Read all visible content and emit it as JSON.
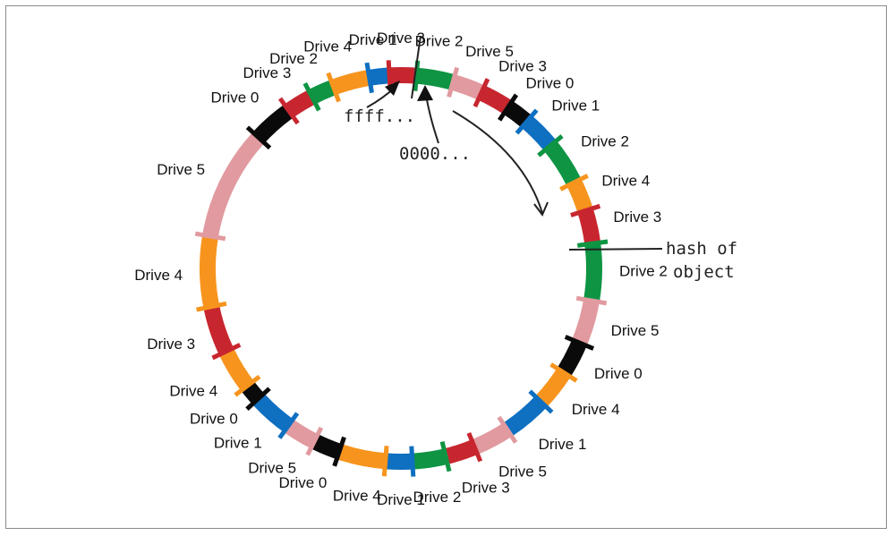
{
  "colors": {
    "Drive 0": "#0a0a0a",
    "Drive 1": "#0f6fc1",
    "Drive 2": "#0e9443",
    "Drive 3": "#c8262f",
    "Drive 4": "#f7941d",
    "Drive 5": "#e19a9f",
    "ink": "#222222"
  },
  "ring": {
    "segments": [
      {
        "drive": "Drive 2",
        "label": "Drive 2"
      },
      {
        "drive": "Drive 5",
        "label": "Drive 5"
      },
      {
        "drive": "Drive 3",
        "label": "Drive 3"
      },
      {
        "drive": "Drive 0",
        "label": "Drive 0"
      },
      {
        "drive": "Drive 1",
        "label": "Drive 1"
      },
      {
        "drive": "Drive 2",
        "label": "Drive 2"
      },
      {
        "drive": "Drive 4",
        "label": "Drive 4"
      },
      {
        "drive": "Drive 3",
        "label": "Drive 3"
      },
      {
        "drive": "Drive 2",
        "label": "Drive 2"
      },
      {
        "drive": "Drive 5",
        "label": "Drive 5"
      },
      {
        "drive": "Drive 0",
        "label": "Drive 0"
      },
      {
        "drive": "Drive 4",
        "label": "Drive 4"
      },
      {
        "drive": "Drive 1",
        "label": "Drive 1"
      },
      {
        "drive": "Drive 5",
        "label": "Drive 5"
      },
      {
        "drive": "Drive 3",
        "label": "Drive 3"
      },
      {
        "drive": "Drive 2",
        "label": "Drive 2"
      },
      {
        "drive": "Drive 1",
        "label": "Drive 1"
      },
      {
        "drive": "Drive 4",
        "label": "Drive 4"
      },
      {
        "drive": "Drive 0",
        "label": "Drive 0"
      },
      {
        "drive": "Drive 5",
        "label": "Drive 5"
      },
      {
        "drive": "Drive 1",
        "label": "Drive 1"
      },
      {
        "drive": "Drive 0",
        "label": "Drive 0"
      },
      {
        "drive": "Drive 4",
        "label": "Drive 4"
      },
      {
        "drive": "Drive 3",
        "label": "Drive 3"
      },
      {
        "drive": "Drive 4",
        "label": "Drive 4"
      },
      {
        "drive": "Drive 5",
        "label": "Drive 5"
      },
      {
        "drive": "Drive 0",
        "label": "Drive 0"
      },
      {
        "drive": "Drive 3",
        "label": "Drive 3"
      },
      {
        "drive": "Drive 2",
        "label": "Drive 2"
      },
      {
        "drive": "Drive 4",
        "label": "Drive 4"
      },
      {
        "drive": "Drive 1",
        "label": "Drive 1"
      },
      {
        "drive": "Drive 3",
        "label": "Drive 3"
      }
    ]
  },
  "annotations": {
    "ffff": "ffff...",
    "zero": "0000...",
    "hash_line1": "hash of",
    "hash_line2": "object"
  }
}
